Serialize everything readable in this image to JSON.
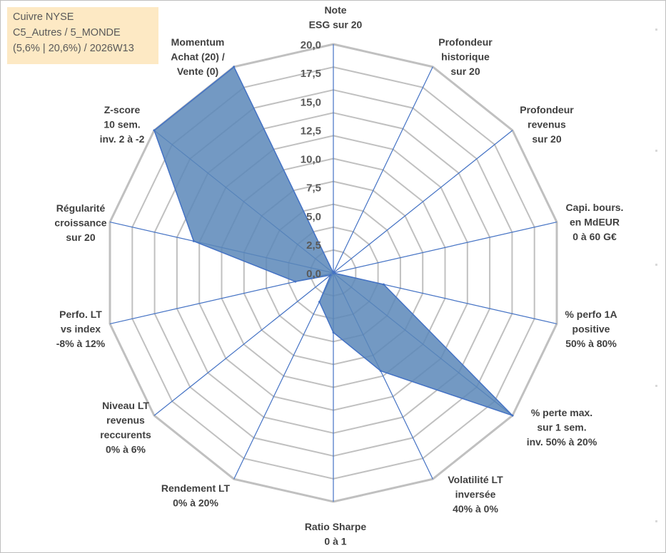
{
  "info": {
    "line1": "Cuivre NYSE",
    "line2": "C5_Autres / 5_MONDE",
    "line3": "(5,6% | 20,6%) / 2026W13"
  },
  "colors": {
    "grid": "#c0c0c0",
    "spoke": "#4472c4",
    "fill": "#5b87b8",
    "fill_stroke": "#4472c4",
    "text": "#404040",
    "info_bg": "#fde9c4"
  },
  "chart_data": {
    "type": "radar",
    "title": "",
    "rmin": 0,
    "rmax": 20,
    "tick_step": 2.5,
    "grid_rings": 10,
    "tick_labels": [
      "0,0",
      "2,5",
      "5,0",
      "7,5",
      "10,0",
      "12,5",
      "15,0",
      "17,5",
      "20,0"
    ],
    "axes": [
      [
        "Note",
        "ESG sur 20"
      ],
      [
        "Profondeur",
        "historique",
        "sur 20"
      ],
      [
        "Profondeur",
        "revenus",
        "sur 20"
      ],
      [
        "Capi. bours.",
        "en MdEUR",
        "0 à 60 G€"
      ],
      [
        "% perfo 1A",
        "positive",
        "50% à 80%"
      ],
      [
        "% perte max.",
        "sur 1 sem.",
        "inv. 50% à 20%"
      ],
      [
        "Volatilité LT",
        "inversée",
        "40% à 0%"
      ],
      [
        "Ratio Sharpe",
        "0 à 1"
      ],
      [
        "Rendement LT",
        "0% à 20%"
      ],
      [
        "Niveau LT",
        "revenus",
        "reccurents",
        "0% à 6%"
      ],
      [
        "Perfo. LT",
        "vs index",
        "-8% à 12%"
      ],
      [
        "Régularité",
        "croissance",
        "sur 20"
      ],
      [
        "Z-score",
        "10 sem.",
        "inv. 2 à -2"
      ],
      [
        "Momentum",
        "Achat (20) /",
        "Vente (0)"
      ]
    ],
    "series": [
      {
        "name": "Cuivre NYSE",
        "values": [
          0,
          0,
          0,
          0,
          4.5,
          20,
          9.5,
          5.2,
          2.8,
          0.3,
          3.4,
          12.5,
          20,
          20
        ]
      }
    ]
  }
}
